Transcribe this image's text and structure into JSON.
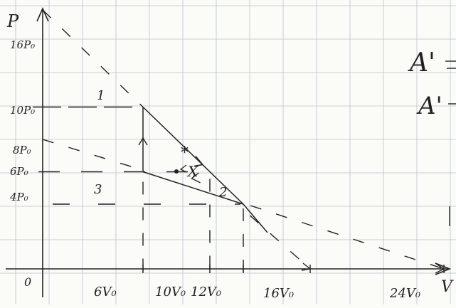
{
  "axes": {
    "y_label": "P",
    "x_label": "V",
    "origin_label": "0",
    "x_ticks": [
      {
        "label": "6V₀",
        "v": 6
      },
      {
        "label": "10V₀",
        "v": 10
      },
      {
        "label": "12V₀",
        "v": 12
      },
      {
        "label": "16V₀",
        "v": 16
      },
      {
        "label": "24V₀",
        "v": 24
      }
    ],
    "y_ticks": [
      {
        "label": "16P₀",
        "p": 16
      },
      {
        "label": "10P₀",
        "p": 10
      },
      {
        "label": "8P₀",
        "p": 8
      },
      {
        "label": "6P₀",
        "p": 6
      },
      {
        "label": "4P₀",
        "p": 4
      }
    ]
  },
  "points": {
    "p1": {
      "label": "1",
      "v": 6,
      "p": 10
    },
    "p2": {
      "label": "2",
      "v": 12,
      "p": 4
    },
    "p3": {
      "label": "3",
      "v": 6,
      "p": 6
    },
    "px": {
      "label": "X",
      "v": 10,
      "p": 6
    },
    "px_mark": "*"
  },
  "margin_text": {
    "line1": "A'",
    "line2": "A'"
  },
  "colors": {
    "ink": "#222222",
    "grid": "#b8c4cc",
    "paper": "#fbfbf8"
  }
}
